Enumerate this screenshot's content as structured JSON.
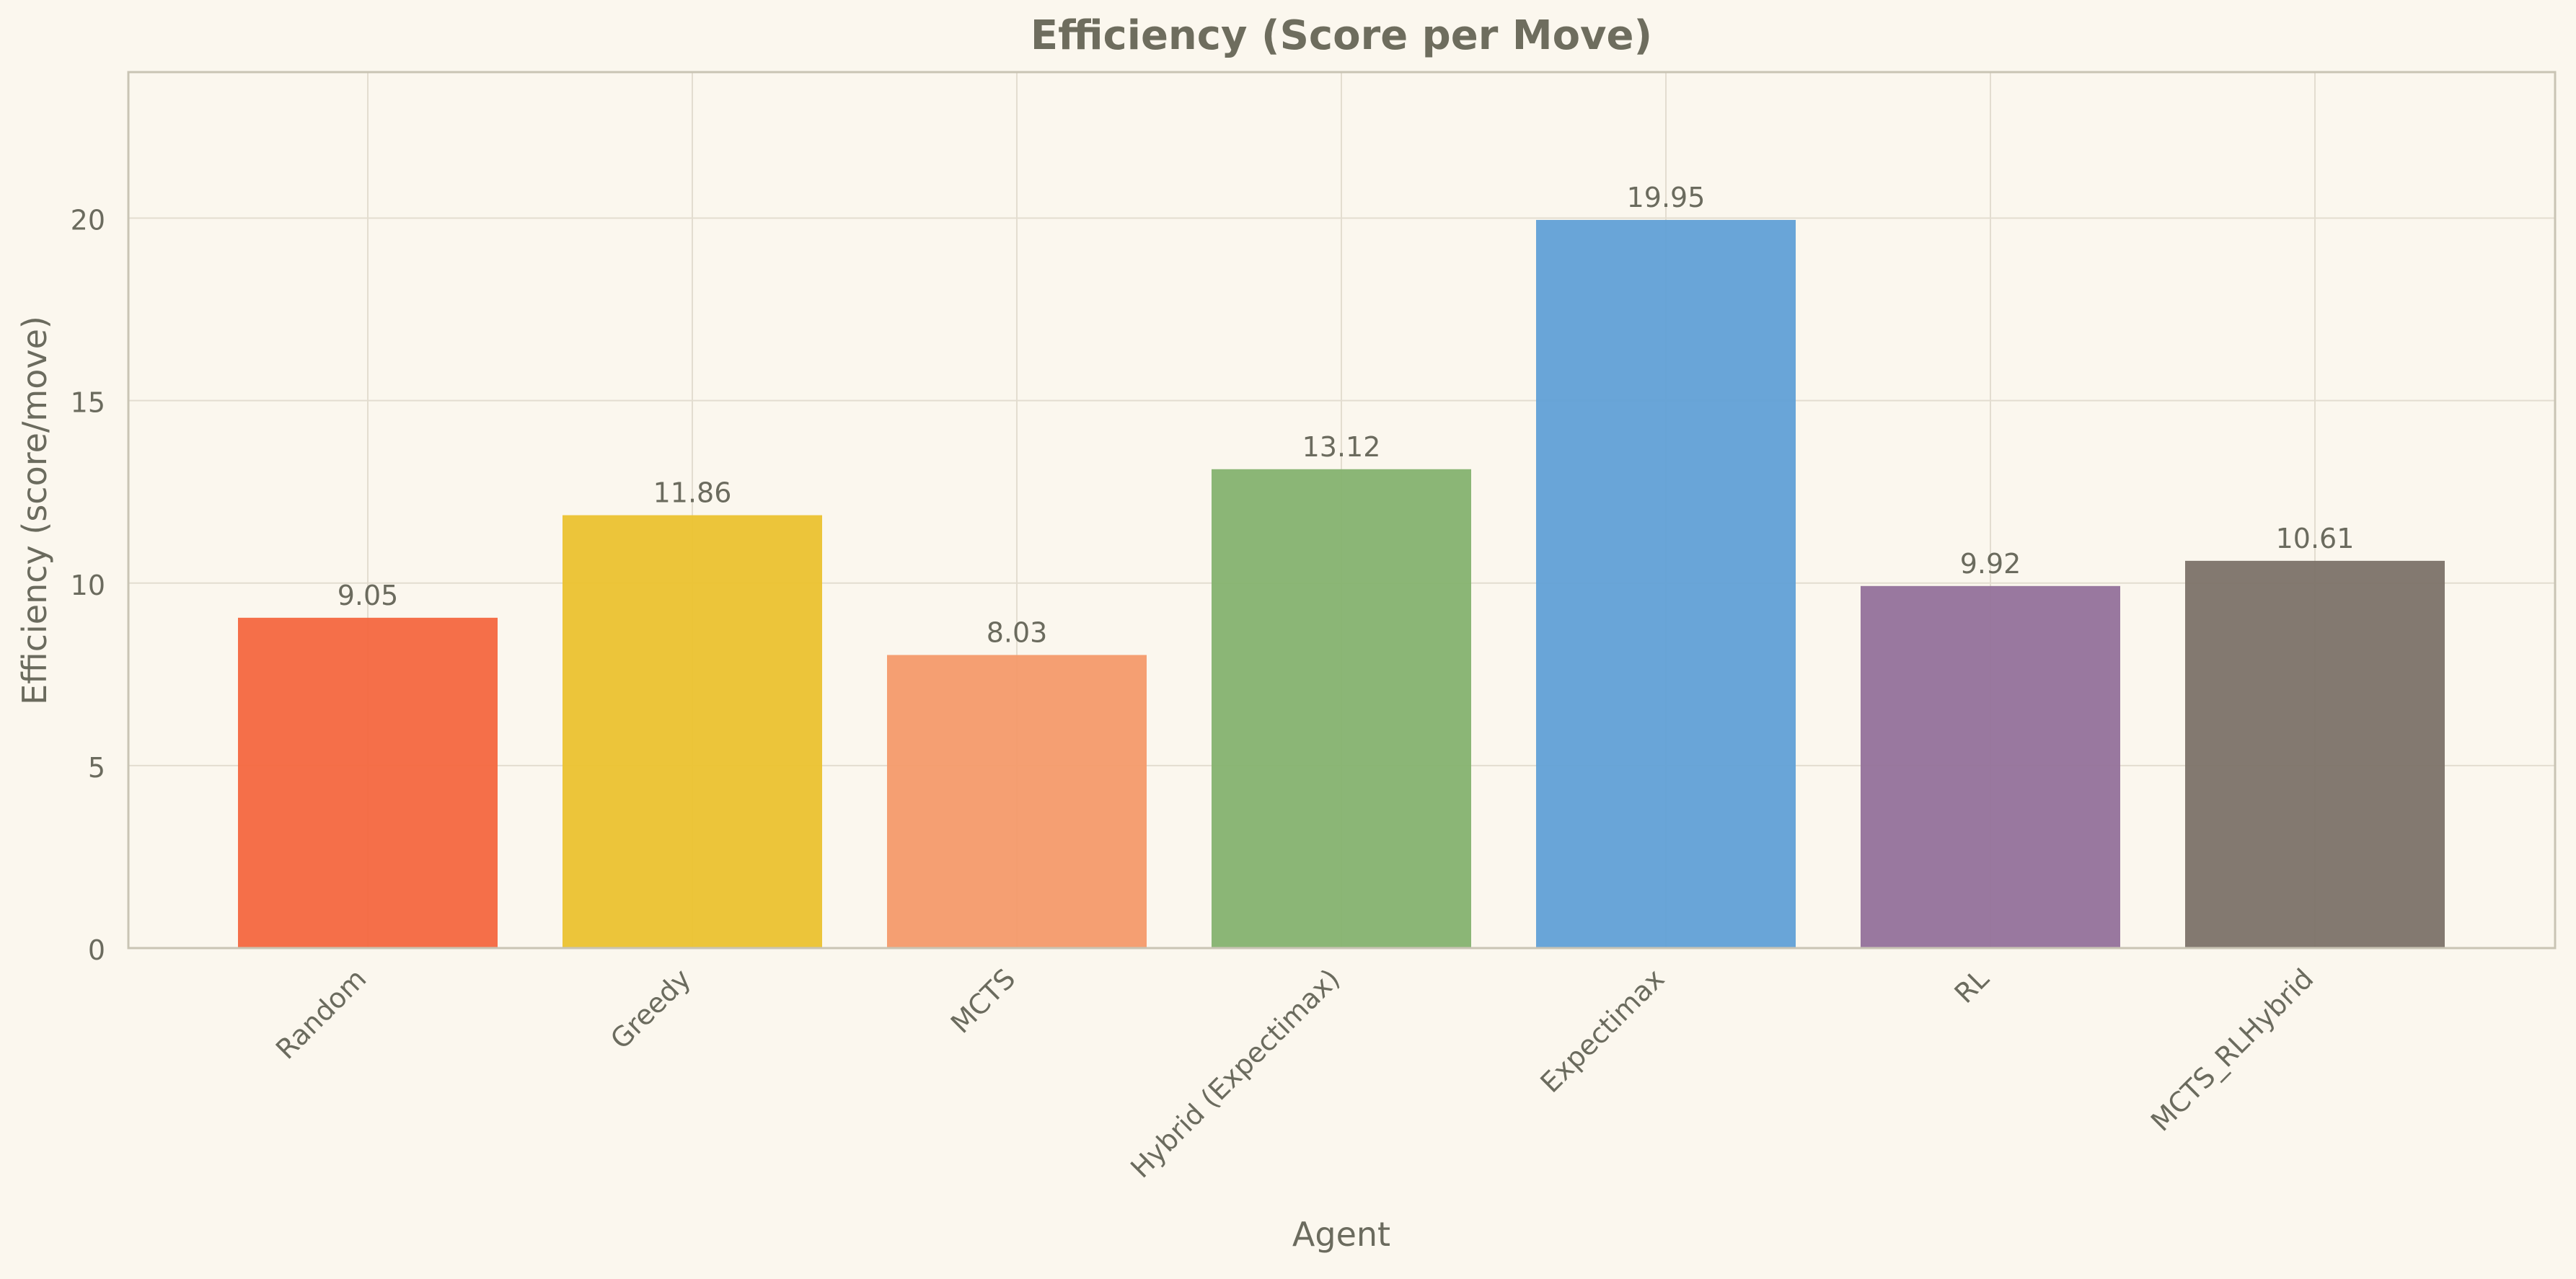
{
  "chart_data": {
    "type": "bar",
    "title": "Efficiency (Score per Move)",
    "xlabel": "Agent",
    "ylabel": "Efficiency (score/move)",
    "categories": [
      "Random",
      "Greedy",
      "MCTS",
      "Hybrid (Expectimax)",
      "Expectimax",
      "RL",
      "MCTS_RLHybrid"
    ],
    "values": [
      9.05,
      11.86,
      8.03,
      13.12,
      19.95,
      9.92,
      10.61
    ],
    "value_labels": [
      "9.05",
      "11.86",
      "8.03",
      "13.12",
      "19.95",
      "9.92",
      "10.61"
    ],
    "colors": [
      "#f4673f",
      "#ebc22f",
      "#f49a6a",
      "#85b26f",
      "#61a0d6",
      "#93719a",
      "#7c7268"
    ],
    "ylim": [
      0,
      24
    ],
    "yticks": [
      0,
      5,
      10,
      15,
      20
    ],
    "grid": true,
    "legend": "none"
  },
  "style": {
    "background": "#fbf7ee",
    "text_color": "#6b6b5e",
    "grid_color": "#e3ddd0",
    "spine_color": "#c9c4b4"
  }
}
